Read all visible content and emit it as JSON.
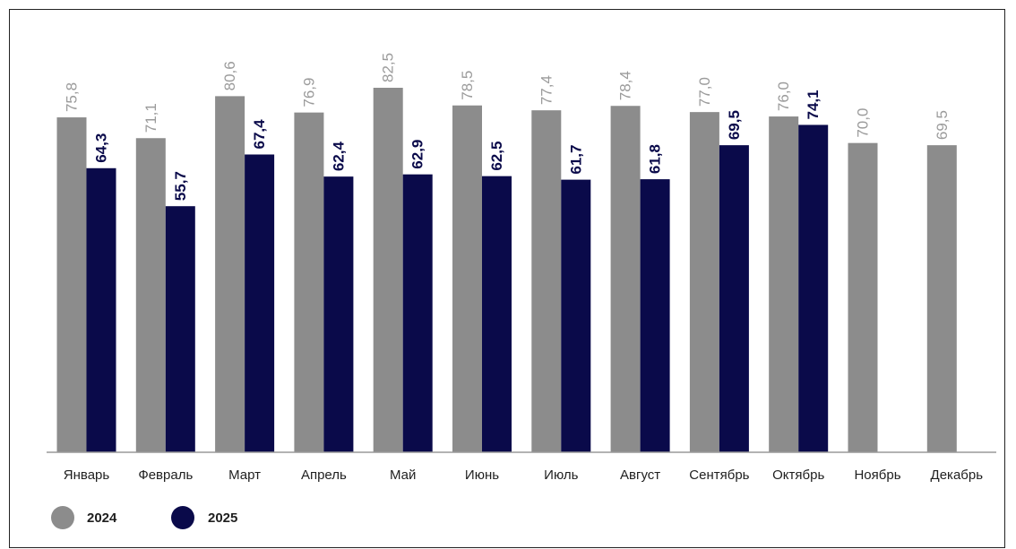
{
  "chart_data": {
    "type": "bar",
    "categories": [
      "Январь",
      "Февраль",
      "Март",
      "Апрель",
      "Май",
      "Июнь",
      "Июль",
      "Август",
      "Сентябрь",
      "Октябрь",
      "Ноябрь",
      "Декабрь"
    ],
    "series": [
      {
        "name": "2024",
        "color": "#8c8c8c",
        "values": [
          75.8,
          71.1,
          80.6,
          76.9,
          82.5,
          78.5,
          77.4,
          78.4,
          77.0,
          76.0,
          70.0,
          69.5
        ],
        "labels": [
          "75,8",
          "71,1",
          "80,6",
          "76,9",
          "82,5",
          "78,5",
          "77,4",
          "78,4",
          "77,0",
          "76,0",
          "70,0",
          "69,5"
        ]
      },
      {
        "name": "2025",
        "color": "#0a0a4a",
        "values": [
          64.3,
          55.7,
          67.4,
          62.4,
          62.9,
          62.5,
          61.7,
          61.8,
          69.5,
          74.1,
          null,
          null
        ],
        "labels": [
          "64,3",
          "55,7",
          "67,4",
          "62,4",
          "62,9",
          "62,5",
          "61,7",
          "61,8",
          "69,5",
          "74,1",
          "",
          ""
        ]
      }
    ],
    "ylim": [
      0,
      100
    ],
    "grid": false,
    "legend": "bottom-left",
    "title": "",
    "xlabel": "",
    "ylabel": ""
  }
}
